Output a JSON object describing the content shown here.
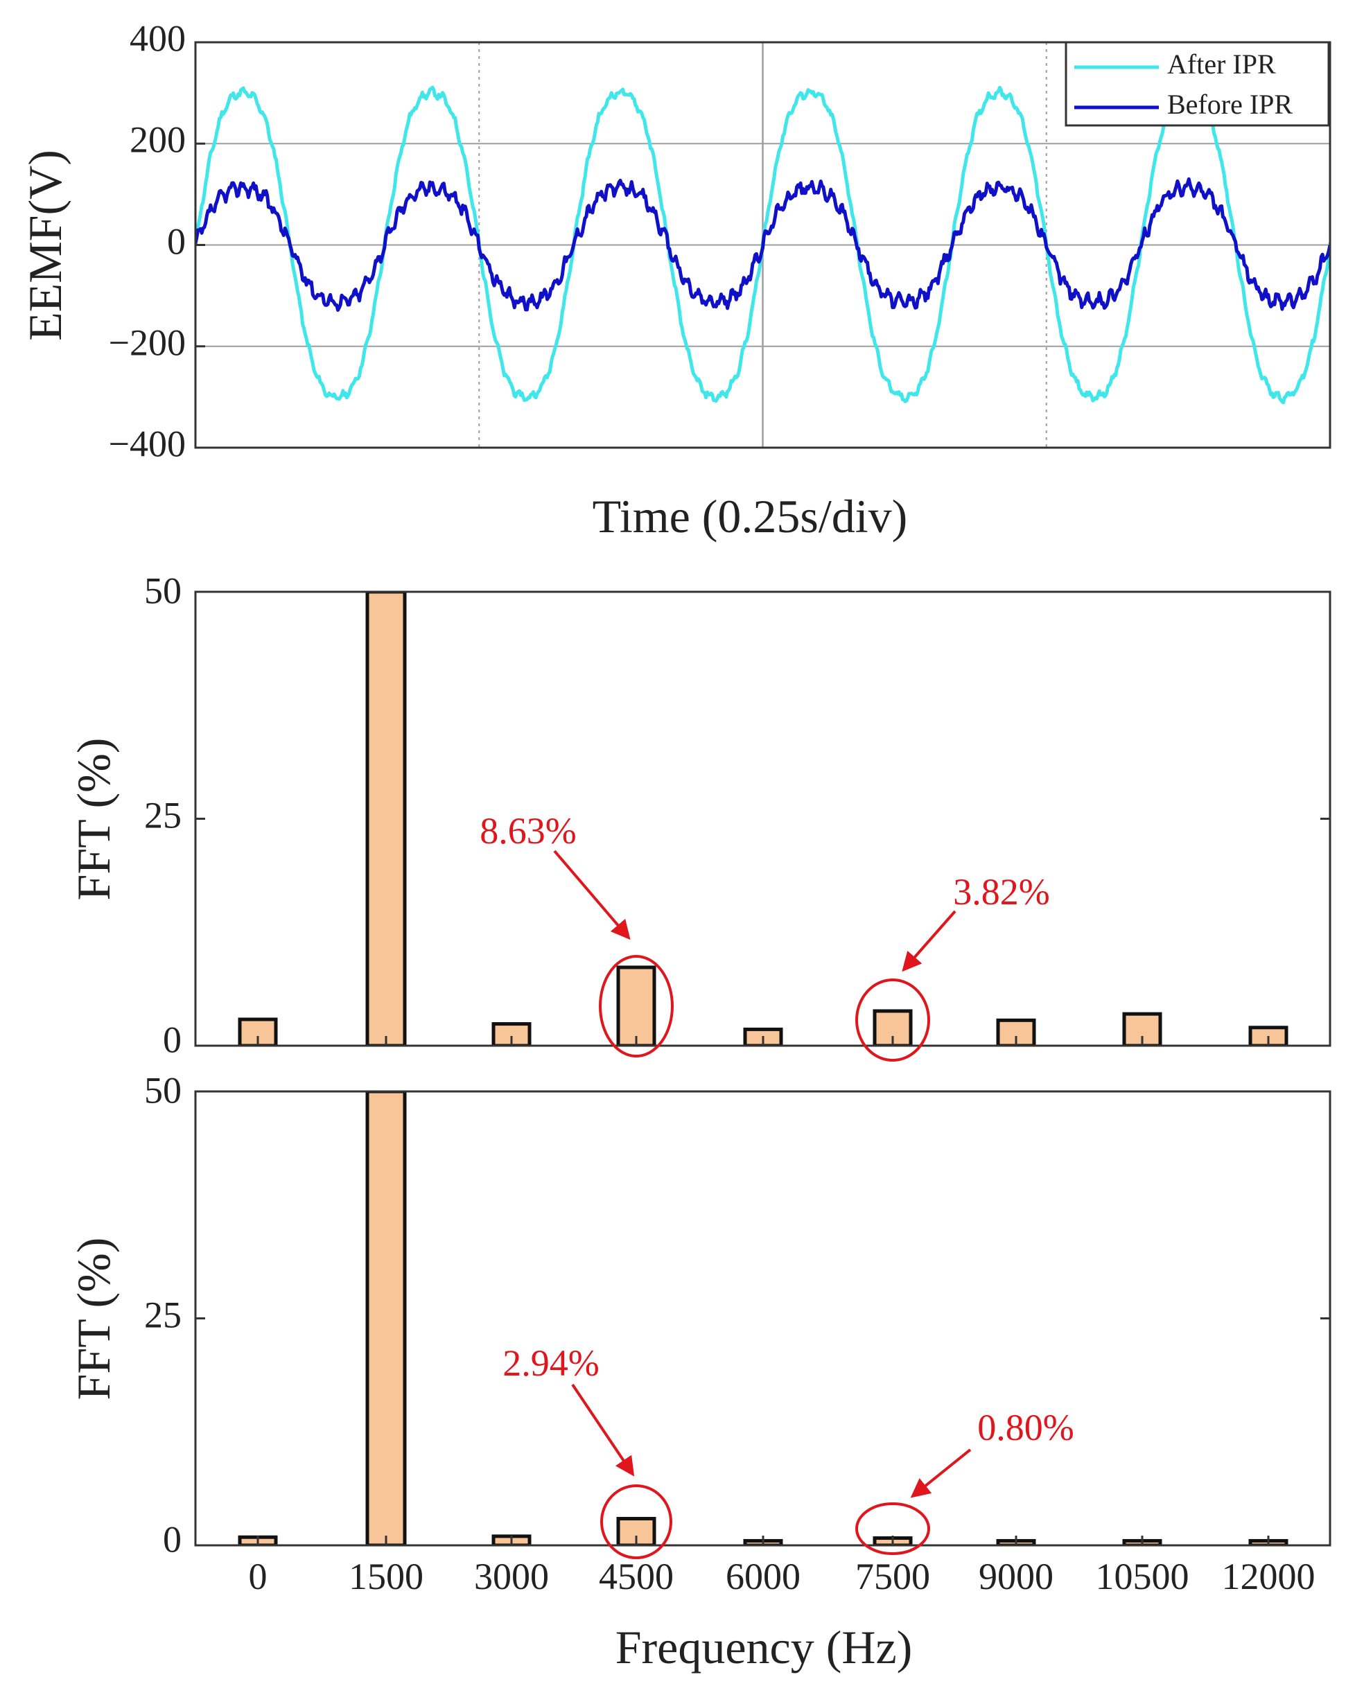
{
  "colors": {
    "after_ipr": "#3fe6ea",
    "before_ipr": "#1010c8",
    "bar_fill": "#f8c598",
    "bar_edge": "#111111",
    "annotation": "#e0161c",
    "grid": "#9e9e9e"
  },
  "chart_data": [
    {
      "type": "line",
      "title": "",
      "xlabel": "Time (0.25s/div)",
      "ylabel": "EEMF(V)",
      "ylim": [
        -400,
        400
      ],
      "yticks": [
        "400",
        "200",
        "0",
        "−200",
        "−400"
      ],
      "x_divisions": 4,
      "cycles": 6,
      "grid": true,
      "legend": "top-right",
      "series": [
        {
          "name": "After IPR",
          "amplitude": 320
        },
        {
          "name": "Before IPR",
          "amplitude": 120
        }
      ]
    },
    {
      "type": "bar",
      "title": "",
      "xlabel": "",
      "ylabel": "FFT (%)",
      "ylim": [
        0,
        50
      ],
      "yticks": [
        "50",
        "25",
        "0"
      ],
      "categories": [
        "0",
        "1500",
        "3000",
        "4500",
        "6000",
        "7500",
        "9000",
        "10500",
        "12000"
      ],
      "values": [
        2.9,
        50,
        2.4,
        8.63,
        1.8,
        3.82,
        2.8,
        3.5,
        2.0
      ],
      "annotations": [
        {
          "category": "4500",
          "text": "8.63%"
        },
        {
          "category": "7500",
          "text": "3.82%"
        }
      ]
    },
    {
      "type": "bar",
      "title": "",
      "xlabel": "Frequency (Hz)",
      "ylabel": "FFT (%)",
      "ylim": [
        0,
        50
      ],
      "yticks": [
        "50",
        "25",
        "0"
      ],
      "categories": [
        "0",
        "1500",
        "3000",
        "4500",
        "6000",
        "7500",
        "9000",
        "10500",
        "12000"
      ],
      "values": [
        0.9,
        50,
        1.0,
        2.94,
        0.5,
        0.8,
        0.5,
        0.5,
        0.5
      ],
      "annotations": [
        {
          "category": "4500",
          "text": "2.94%"
        },
        {
          "category": "7500",
          "text": "0.80%"
        }
      ]
    }
  ]
}
